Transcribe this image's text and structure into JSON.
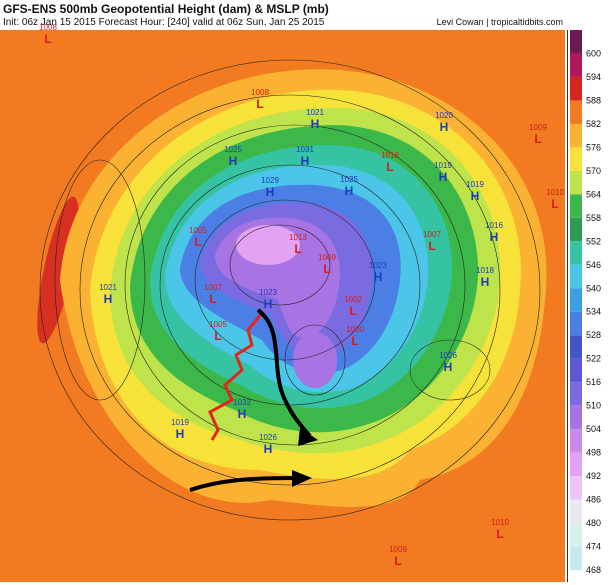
{
  "header": {
    "title": "GFS-ENS 500mb Geopotential Height (dam) & MSLP (mb)",
    "subtitle": "Init: 06z Jan 15 2015   Forecast Hour: [240]   valid at 06z Sun, Jan 25 2015",
    "credit": "Levi Cowan | tropicaltidbits.com"
  },
  "colorbar": {
    "labels": [
      "600",
      "594",
      "588",
      "582",
      "576",
      "570",
      "564",
      "558",
      "552",
      "546",
      "540",
      "534",
      "528",
      "522",
      "516",
      "510",
      "504",
      "498",
      "492",
      "486",
      "480",
      "474",
      "468"
    ]
  },
  "centers": [
    {
      "kind": "L",
      "value": "1008"
    },
    {
      "kind": "L",
      "value": "1008"
    },
    {
      "kind": "H",
      "value": "1021"
    },
    {
      "kind": "H",
      "value": "1025"
    },
    {
      "kind": "H",
      "value": "1031"
    },
    {
      "kind": "H",
      "value": "1020"
    },
    {
      "kind": "L",
      "value": "1016"
    },
    {
      "kind": "H",
      "value": "1019"
    },
    {
      "kind": "H",
      "value": "1019"
    },
    {
      "kind": "H",
      "value": "1025"
    },
    {
      "kind": "H",
      "value": "1029"
    },
    {
      "kind": "L",
      "value": "1005"
    },
    {
      "kind": "L",
      "value": "1013"
    },
    {
      "kind": "H",
      "value": "1016"
    },
    {
      "kind": "L",
      "value": "1007"
    },
    {
      "kind": "H",
      "value": "1023"
    },
    {
      "kind": "L",
      "value": "1009"
    },
    {
      "kind": "H",
      "value": "1018"
    },
    {
      "kind": "H",
      "value": "1021"
    },
    {
      "kind": "L",
      "value": "1007"
    },
    {
      "kind": "H",
      "value": "1023"
    },
    {
      "kind": "L",
      "value": "1002"
    },
    {
      "kind": "L",
      "value": "1000"
    },
    {
      "kind": "L",
      "value": "1005"
    },
    {
      "kind": "H",
      "value": "1026"
    },
    {
      "kind": "H",
      "value": "1019"
    },
    {
      "kind": "H",
      "value": "1032"
    },
    {
      "kind": "H",
      "value": "1026"
    },
    {
      "kind": "L",
      "value": "1010"
    },
    {
      "kind": "L",
      "value": "1009"
    },
    {
      "kind": "L",
      "value": "1009"
    },
    {
      "kind": "L",
      "value": "1010"
    }
  ]
}
